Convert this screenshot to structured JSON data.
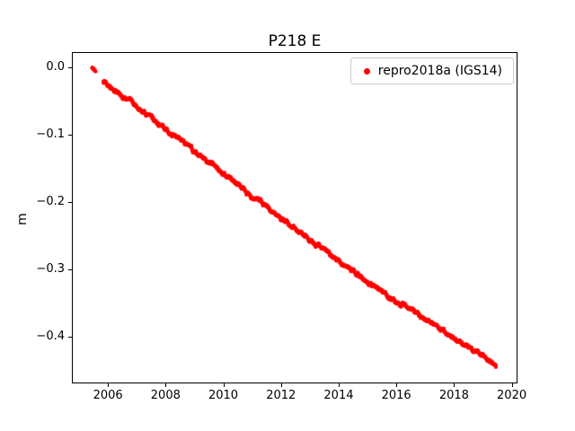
{
  "figure": {
    "title": "P218 E",
    "ylabel": "m"
  },
  "legend": {
    "entries": [
      {
        "label": "repro2018a (IGS14)",
        "color": "#ff0000",
        "marker": "dot"
      }
    ]
  },
  "chart_data": {
    "type": "scatter",
    "title": "P218 E",
    "xlabel": "",
    "ylabel": "m",
    "xlim": [
      2004.75,
      2020.2
    ],
    "ylim": [
      -0.47,
      0.022
    ],
    "xticks": [
      2006,
      2008,
      2010,
      2012,
      2014,
      2016,
      2018,
      2020
    ],
    "xtick_labels": [
      "2006",
      "2008",
      "2010",
      "2012",
      "2014",
      "2016",
      "2018",
      "2020"
    ],
    "yticks": [
      0.0,
      -0.1,
      -0.2,
      -0.3,
      -0.4
    ],
    "ytick_labels": [
      "0.0",
      "−0.1",
      "−0.2",
      "−0.3",
      "−0.4"
    ],
    "grid": false,
    "legend_position": "upper right",
    "gaps": [
      [
        2005.57,
        2005.83
      ]
    ],
    "series": [
      {
        "name": "repro2018a (IGS14)",
        "color": "#ff0000",
        "marker_px": 2.1,
        "points": [
          [
            2005.45,
            -0.002
          ],
          [
            2005.55,
            -0.004
          ],
          [
            2005.85,
            -0.022
          ],
          [
            2006.0,
            -0.028
          ],
          [
            2006.2,
            -0.033
          ],
          [
            2006.5,
            -0.045
          ],
          [
            2006.8,
            -0.052
          ],
          [
            2007.0,
            -0.06
          ],
          [
            2007.3,
            -0.068
          ],
          [
            2007.6,
            -0.08
          ],
          [
            2007.9,
            -0.088
          ],
          [
            2008.2,
            -0.1
          ],
          [
            2008.5,
            -0.108
          ],
          [
            2008.8,
            -0.118
          ],
          [
            2009.1,
            -0.13
          ],
          [
            2009.4,
            -0.138
          ],
          [
            2009.7,
            -0.148
          ],
          [
            2010.0,
            -0.158
          ],
          [
            2010.3,
            -0.167
          ],
          [
            2010.6,
            -0.177
          ],
          [
            2010.9,
            -0.19
          ],
          [
            2011.2,
            -0.198
          ],
          [
            2011.5,
            -0.207
          ],
          [
            2011.8,
            -0.218
          ],
          [
            2012.1,
            -0.228
          ],
          [
            2012.4,
            -0.237
          ],
          [
            2012.7,
            -0.247
          ],
          [
            2013.0,
            -0.257
          ],
          [
            2013.3,
            -0.265
          ],
          [
            2013.6,
            -0.275
          ],
          [
            2013.9,
            -0.285
          ],
          [
            2014.2,
            -0.295
          ],
          [
            2014.5,
            -0.303
          ],
          [
            2014.8,
            -0.313
          ],
          [
            2015.1,
            -0.322
          ],
          [
            2015.4,
            -0.33
          ],
          [
            2015.7,
            -0.34
          ],
          [
            2016.0,
            -0.35
          ],
          [
            2016.3,
            -0.355
          ],
          [
            2016.6,
            -0.362
          ],
          [
            2016.9,
            -0.372
          ],
          [
            2017.2,
            -0.38
          ],
          [
            2017.5,
            -0.388
          ],
          [
            2017.8,
            -0.398
          ],
          [
            2018.1,
            -0.407
          ],
          [
            2018.4,
            -0.413
          ],
          [
            2018.7,
            -0.422
          ],
          [
            2019.0,
            -0.43
          ],
          [
            2019.2,
            -0.437
          ],
          [
            2019.35,
            -0.442
          ],
          [
            2019.45,
            -0.446
          ]
        ]
      }
    ]
  }
}
